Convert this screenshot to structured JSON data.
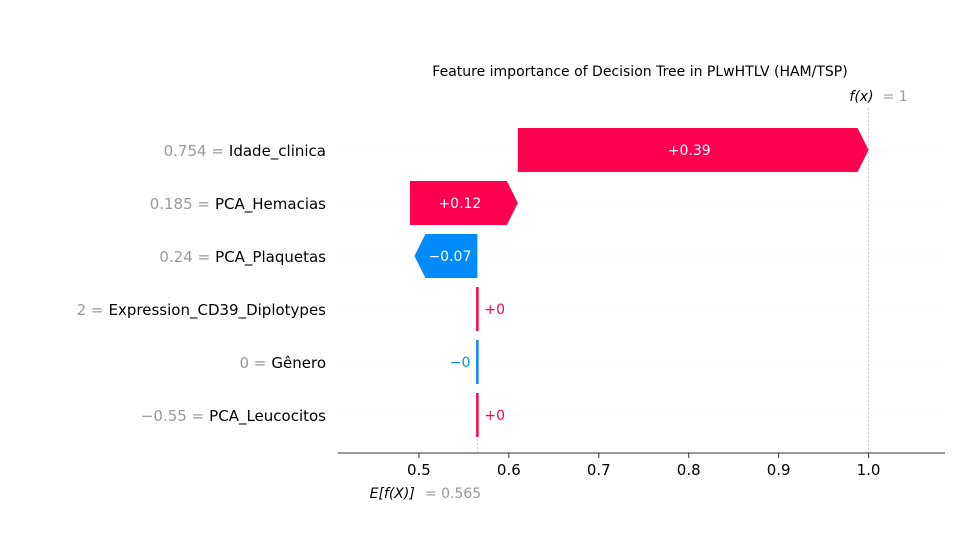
{
  "chart_data": {
    "type": "waterfall",
    "title": "Feature importance of Decision Tree in PLwHTLV (HAM/TSP)",
    "base_value": 0.565,
    "output_value": 1,
    "base_label": {
      "prefix": "E[f(X)]",
      "value_text": "= 0.565"
    },
    "output_label": {
      "prefix": "f(x)",
      "value_text": "= 1"
    },
    "xlim": [
      0.41,
      1.085
    ],
    "ticks": [
      0.5,
      0.6,
      0.7,
      0.8,
      0.9,
      1.0
    ],
    "tick_labels": [
      "0.5",
      "0.6",
      "0.7",
      "0.8",
      "0.9",
      "1.0"
    ],
    "features": [
      {
        "value_text": "0.754 =",
        "name": "Idade_clinica",
        "contribution": 0.39,
        "label": "+0.39",
        "start": 0.61,
        "end": 1.0
      },
      {
        "value_text": "0.185 =",
        "name": "PCA_Hemacias",
        "contribution": 0.12,
        "label": "+0.12",
        "start": 0.49,
        "end": 0.61
      },
      {
        "value_text": "0.24 =",
        "name": "PCA_Plaquetas",
        "contribution": -0.07,
        "label": "−0.07",
        "start": 0.565,
        "end": 0.495
      },
      {
        "value_text": "2 =",
        "name": "Expression_CD39_Diplotypes",
        "contribution": 0.0,
        "label": "+0",
        "start": 0.565,
        "end": 0.565
      },
      {
        "value_text": "0 =",
        "name": "Gênero",
        "contribution": -0.0,
        "label": "−0",
        "start": 0.565,
        "end": 0.565
      },
      {
        "value_text": "−0.55 =",
        "name": "PCA_Leucocitos",
        "contribution": 0.0,
        "label": "+0",
        "start": 0.565,
        "end": 0.565
      }
    ],
    "colors": {
      "positive": "#ff0051",
      "negative": "#008bfb",
      "guide": "#cccccc",
      "axis": "#333333"
    }
  }
}
